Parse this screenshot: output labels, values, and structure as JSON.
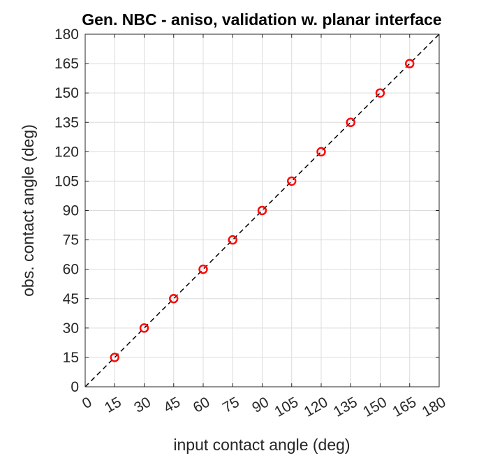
{
  "chart_data": {
    "type": "scatter",
    "title": "Gen. NBC - aniso, validation w. planar interface",
    "xlabel": "input contact angle (deg)",
    "ylabel": "obs. contact angle (deg)",
    "xlim": [
      0,
      180
    ],
    "ylim": [
      0,
      180
    ],
    "xticks": [
      "0",
      "15",
      "30",
      "45",
      "60",
      "75",
      "90",
      "105",
      "120",
      "135",
      "150",
      "165",
      "180"
    ],
    "yticks": [
      "0",
      "15",
      "30",
      "45",
      "60",
      "75",
      "90",
      "105",
      "120",
      "135",
      "150",
      "165",
      "180"
    ],
    "grid": true,
    "series": [
      {
        "marker": "circle",
        "color": "#ff0000",
        "x": [
          15,
          30,
          45,
          60,
          75,
          90,
          105,
          120,
          135,
          150,
          165
        ],
        "y": [
          15,
          30,
          45,
          60,
          75,
          90,
          105,
          120,
          135,
          150,
          165
        ]
      }
    ],
    "reference_line": {
      "style": "dashed",
      "color": "#000000",
      "x": [
        0,
        180
      ],
      "y": [
        0,
        180
      ]
    }
  }
}
